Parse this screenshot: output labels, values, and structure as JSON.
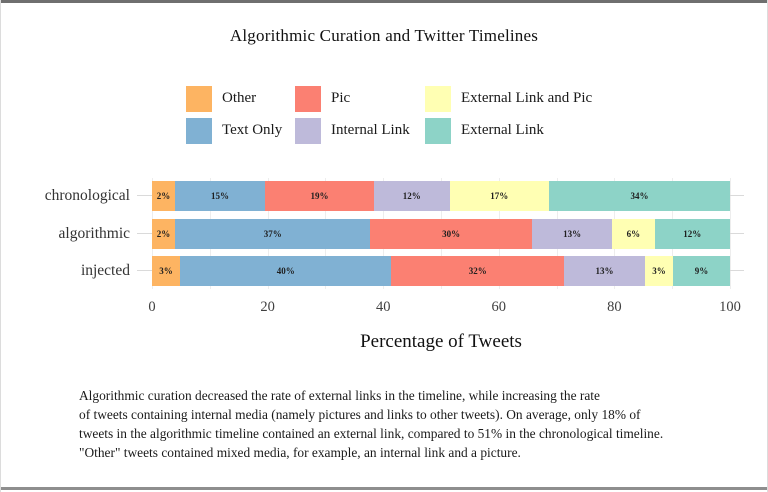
{
  "chart_data": {
    "type": "bar",
    "orientation": "horizontal-stacked",
    "title": "Algorithmic Curation and Twitter Timelines",
    "xlabel": "Percentage of Tweets",
    "xlim": [
      0,
      100
    ],
    "x_ticks": [
      0,
      20,
      40,
      60,
      80,
      100
    ],
    "minor_grid_step": 10,
    "legend_position": "top",
    "legend_order": [
      "Other",
      "Pic",
      "External Link and Pic",
      "Text Only",
      "Internal Link",
      "External Link"
    ],
    "segments_order": [
      "Other",
      "Text Only",
      "Pic",
      "Internal Link",
      "External Link and Pic",
      "External Link"
    ],
    "colors": {
      "Other": "#FDB462",
      "Text Only": "#80B1D3",
      "Pic": "#FB8072",
      "Internal Link": "#BEBADA",
      "External Link and Pic": "#FFFFB3",
      "External Link": "#8DD3C7"
    },
    "categories": [
      "chronological",
      "algorithmic",
      "injected"
    ],
    "rows": [
      {
        "category": "chronological",
        "values": [
          2,
          15,
          19,
          12,
          17,
          34
        ]
      },
      {
        "category": "algorithmic",
        "values": [
          2,
          37,
          30,
          13,
          6,
          12
        ]
      },
      {
        "category": "injected",
        "values": [
          3,
          40,
          32,
          13,
          3,
          9
        ]
      }
    ],
    "value_suffix": "%"
  },
  "caption": {
    "lines": [
      "Algorithmic curation decreased the rate of external links in the timeline, while increasing the rate",
      "of tweets containing internal media (namely pictures and links to other tweets). On average, only 18% of",
      "tweets in the algorithmic timeline contained an external link, compared to 51% in the chronological timeline.",
      "\"Other\" tweets contained mixed media, for example, an internal link and a picture."
    ]
  }
}
